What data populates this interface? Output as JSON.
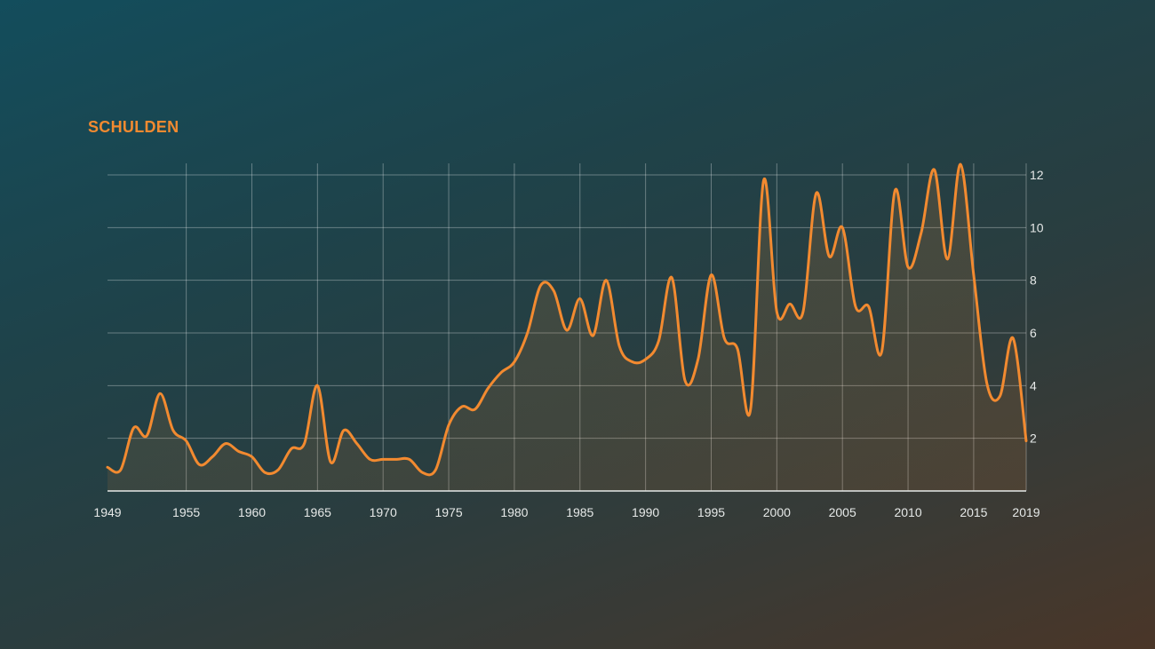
{
  "chart_data": {
    "type": "area",
    "title": "SCHULDEN",
    "xlabel": "",
    "ylabel": "",
    "xlim": [
      1949,
      2019
    ],
    "ylim": [
      0,
      12
    ],
    "x_ticks": [
      1949,
      1955,
      1960,
      1965,
      1970,
      1975,
      1980,
      1985,
      1990,
      1995,
      2000,
      2005,
      2010,
      2015,
      2019
    ],
    "y_ticks": [
      2,
      4,
      6,
      8,
      10,
      12
    ],
    "grid": true,
    "colors": {
      "line": "#f28a30",
      "grid": "rgba(255,255,255,0.32)",
      "axis": "#e6e9e8",
      "title": "#f28a30"
    },
    "x": [
      1949,
      1950,
      1951,
      1952,
      1953,
      1954,
      1955,
      1956,
      1957,
      1958,
      1959,
      1960,
      1961,
      1962,
      1963,
      1964,
      1965,
      1966,
      1967,
      1968,
      1969,
      1970,
      1971,
      1972,
      1973,
      1974,
      1975,
      1976,
      1977,
      1978,
      1979,
      1980,
      1981,
      1982,
      1983,
      1984,
      1985,
      1986,
      1987,
      1988,
      1989,
      1990,
      1991,
      1992,
      1993,
      1994,
      1995,
      1996,
      1997,
      1998,
      1999,
      2000,
      2001,
      2002,
      2003,
      2004,
      2005,
      2006,
      2007,
      2008,
      2009,
      2010,
      2011,
      2012,
      2013,
      2014,
      2015,
      2016,
      2017,
      2018,
      2019
    ],
    "values": [
      0.9,
      0.8,
      2.4,
      2.1,
      3.7,
      2.3,
      1.9,
      1.0,
      1.3,
      1.8,
      1.5,
      1.3,
      0.7,
      0.8,
      1.6,
      1.8,
      4.0,
      1.1,
      2.3,
      1.8,
      1.2,
      1.2,
      1.2,
      1.2,
      0.7,
      0.8,
      2.5,
      3.2,
      3.1,
      3.9,
      4.5,
      4.9,
      6.0,
      7.8,
      7.6,
      6.1,
      7.3,
      5.9,
      8.0,
      5.5,
      4.9,
      5.0,
      5.7,
      8.1,
      4.2,
      5.0,
      8.2,
      5.8,
      5.4,
      3.1,
      11.8,
      6.8,
      7.1,
      6.8,
      11.3,
      8.9,
      10.0,
      7.0,
      7.0,
      5.3,
      11.4,
      8.5,
      9.8,
      12.2,
      8.8,
      12.4,
      8.2,
      4.1,
      3.6,
      5.8,
      1.9
    ]
  }
}
